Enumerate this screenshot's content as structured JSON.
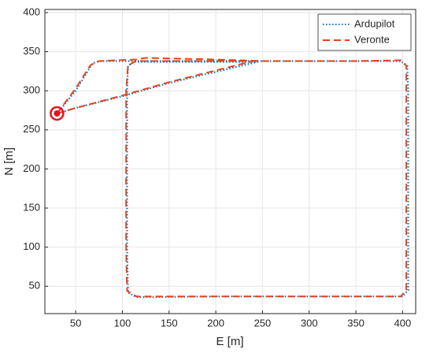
{
  "chart_data": {
    "type": "line",
    "xlabel": "E [m]",
    "ylabel": "N [m]",
    "xlim": [
      17,
      414
    ],
    "xticks": [
      50,
      100,
      150,
      200,
      250,
      300,
      350,
      400
    ],
    "ylim": [
      15,
      404
    ],
    "yticks": [
      50,
      100,
      150,
      200,
      250,
      300,
      350,
      400
    ],
    "grid": true,
    "legend": "upper right",
    "marker": {
      "x": 30,
      "y": 271,
      "color": "#e3141b"
    },
    "series": [
      {
        "name": "Ardupilot",
        "color": "#0072bd",
        "style": "dotted",
        "x": [
          30,
          50,
          68,
          75,
          150,
          250,
          350,
          398,
          405,
          406,
          406,
          406,
          406,
          400,
          300,
          200,
          115,
          106,
          105,
          105,
          105,
          106,
          113,
          180,
          245,
          150,
          100,
          50,
          30
        ],
        "values": [
          271,
          300,
          335,
          338,
          338,
          338,
          338,
          338,
          332,
          300,
          200,
          100,
          45,
          37,
          37,
          37,
          36,
          42,
          100,
          200,
          300,
          332,
          337,
          337,
          337,
          310,
          293,
          278,
          271
        ]
      },
      {
        "name": "Veronte",
        "color": "#e3441b",
        "style": "dashed",
        "x": [
          30,
          50,
          66,
          75,
          115,
          125,
          200,
          250,
          350,
          398,
          404,
          404,
          404,
          404,
          404,
          398,
          300,
          200,
          115,
          105,
          104,
          104,
          104,
          106,
          114,
          180,
          240,
          150,
          100,
          50,
          30
        ],
        "values": [
          271,
          303,
          333,
          338,
          340,
          342,
          340,
          338,
          338,
          339,
          332,
          300,
          200,
          100,
          45,
          37,
          37,
          37,
          37,
          44,
          100,
          200,
          300,
          332,
          338,
          338,
          338,
          311,
          294,
          278,
          271
        ]
      }
    ]
  }
}
